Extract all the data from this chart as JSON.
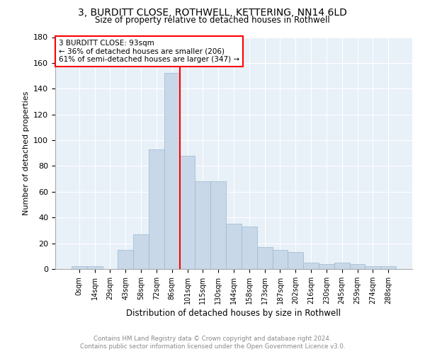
{
  "title": "3, BURDITT CLOSE, ROTHWELL, KETTERING, NN14 6LD",
  "subtitle": "Size of property relative to detached houses in Rothwell",
  "xlabel": "Distribution of detached houses by size in Rothwell",
  "ylabel": "Number of detached properties",
  "bar_color": "#c8d8e8",
  "bar_edge_color": "#9ab8d0",
  "background_color": "#e8f0f8",
  "grid_color": "#ffffff",
  "bins": [
    "0sqm",
    "14sqm",
    "29sqm",
    "43sqm",
    "58sqm",
    "72sqm",
    "86sqm",
    "101sqm",
    "115sqm",
    "130sqm",
    "144sqm",
    "158sqm",
    "173sqm",
    "187sqm",
    "202sqm",
    "216sqm",
    "230sqm",
    "245sqm",
    "259sqm",
    "274sqm",
    "288sqm"
  ],
  "values": [
    2,
    2,
    0,
    15,
    27,
    93,
    152,
    88,
    68,
    68,
    35,
    33,
    17,
    15,
    13,
    5,
    4,
    5,
    4,
    2,
    2
  ],
  "ylim": [
    0,
    180
  ],
  "yticks": [
    0,
    20,
    40,
    60,
    80,
    100,
    120,
    140,
    160,
    180
  ],
  "red_line_bin_index": 6,
  "annotation_title": "3 BURDITT CLOSE: 93sqm",
  "annotation_line1": "← 36% of detached houses are smaller (206)",
  "annotation_line2": "61% of semi-detached houses are larger (347) →",
  "footer_line1": "Contains HM Land Registry data © Crown copyright and database right 2024.",
  "footer_line2": "Contains public sector information licensed under the Open Government Licence v3.0."
}
